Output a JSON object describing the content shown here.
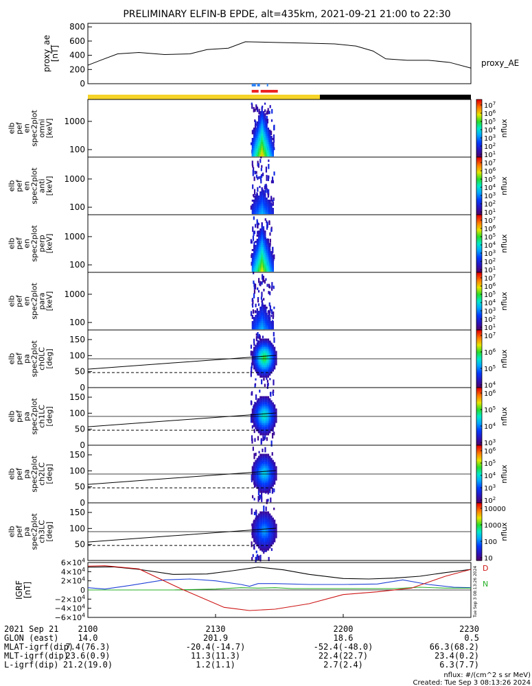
{
  "title": "PRELIMINARY ELFIN-B EPDE, alt=435km, 2021-09-21 21:00 to 22:30",
  "colors": {
    "ae_line": "#000000",
    "bar_sunlit": "#F5D327",
    "bar_shadow": "#000000",
    "marker_blue": "#2E82F5",
    "marker_red": "#EE2222",
    "bx": "#000000",
    "by": "#1D3FD6",
    "bz": "#23B023",
    "bmag": "#CC1111"
  },
  "proxy_ae": {
    "ylabel": "proxy_ae [nT]",
    "legend": "proxy_AE",
    "yticks": [
      "800",
      "600",
      "400",
      "200",
      "0"
    ],
    "ylim": [
      0,
      850
    ]
  },
  "time_axis": {
    "range_min": [
      0,
      90
    ],
    "ticks": [
      {
        "t": 0,
        "label": "2100"
      },
      {
        "t": 30,
        "label": "2130"
      },
      {
        "t": 60,
        "label": "2200"
      },
      {
        "t": 90,
        "label": "2230"
      }
    ]
  },
  "spectrogram_panels": [
    {
      "ylabel": [
        "elb",
        "pef",
        "en",
        "spec2plot",
        "omni",
        "[keV]"
      ],
      "yticks": [
        "1000",
        "100"
      ],
      "scale_ticks": [
        "10^7",
        "10^6",
        "10^5",
        "10^4",
        "10^3",
        "10^2",
        "10^1"
      ],
      "zlabel": "nflux"
    },
    {
      "ylabel": [
        "elb",
        "pef",
        "en",
        "spec2plot",
        "anti",
        "[keV]"
      ],
      "yticks": [
        "1000",
        "100"
      ],
      "scale_ticks": [
        "10^7",
        "10^6",
        "10^5",
        "10^4",
        "10^3",
        "10^2",
        "10^1"
      ],
      "zlabel": "nflux"
    },
    {
      "ylabel": [
        "elb",
        "pef",
        "en",
        "spec2plot",
        "perp",
        "[keV]"
      ],
      "yticks": [
        "1000",
        "100"
      ],
      "scale_ticks": [
        "10^7",
        "10^6",
        "10^5",
        "10^4",
        "10^3",
        "10^2",
        "10^1"
      ],
      "zlabel": "nflux"
    },
    {
      "ylabel": [
        "elb",
        "pef",
        "en",
        "spec2plot",
        "para",
        "[keV]"
      ],
      "yticks": [
        "1000",
        "100"
      ],
      "scale_ticks": [
        "10^7",
        "10^6",
        "10^5",
        "10^4",
        "10^3",
        "10^2",
        "10^1"
      ],
      "zlabel": "nflux"
    }
  ],
  "pitch_panels": [
    {
      "ylabel": [
        "elb",
        "pef",
        "pa",
        "spec2plot",
        "ch0LC",
        "[deg]"
      ],
      "yticks": [
        "150",
        "100",
        "50",
        "0"
      ],
      "scale_ticks": [
        "10^7",
        "10^6",
        "10^5",
        "10^4"
      ],
      "zlabel": "nflux"
    },
    {
      "ylabel": [
        "elb",
        "pef",
        "pa",
        "spec2plot",
        "ch1LC",
        "[deg]"
      ],
      "yticks": [
        "150",
        "100",
        "50",
        "0"
      ],
      "scale_ticks": [
        "10^6",
        "10^5",
        "10^4",
        "10^3"
      ],
      "zlabel": "nflux"
    },
    {
      "ylabel": [
        "elb",
        "pef",
        "pa",
        "spec2plot",
        "ch2LC",
        "[deg]"
      ],
      "yticks": [
        "150",
        "100",
        "50",
        "0"
      ],
      "scale_ticks": [
        "10^6",
        "10^5",
        "10^4",
        "10^3",
        "10^2"
      ],
      "zlabel": "nflux"
    },
    {
      "ylabel": [
        "elb",
        "pef",
        "pa",
        "spec2plot",
        "ch3LC",
        "[deg]"
      ],
      "yticks": [
        "150",
        "100",
        "50"
      ],
      "scale_ticks": [
        "10000",
        "1000",
        "100",
        "10"
      ],
      "zlabel": "nflux"
    }
  ],
  "igrf": {
    "ylabel": "IGRF [nT]",
    "yticks": [
      "6×10^4",
      "4×10^4",
      "2×10^4",
      "0",
      "−2×10^4",
      "−4×10^4",
      "−6×10^4"
    ],
    "ylim": [
      -60000,
      60000
    ],
    "legend": [
      "D",
      "N"
    ]
  },
  "chart_data": {
    "type": "line",
    "title": "PRELIMINARY ELFIN-B EPDE, alt=435km, 2021-09-21 21:00 to 22:30",
    "x_unit": "minutes after 2021-09-21 21:00",
    "series": [
      {
        "name": "proxy_AE",
        "x": [
          0,
          3,
          7,
          12,
          18,
          24,
          28,
          33,
          37,
          45,
          52,
          58,
          63,
          67,
          70,
          75,
          80,
          85,
          90
        ],
        "values": [
          260,
          330,
          420,
          440,
          410,
          420,
          480,
          500,
          590,
          580,
          570,
          560,
          530,
          460,
          350,
          330,
          330,
          300,
          220
        ]
      }
    ],
    "igrf_series": [
      {
        "x": [
          0,
          6,
          12,
          20,
          28,
          34,
          40,
          46,
          52,
          60,
          66,
          72,
          78,
          84,
          90
        ],
        "values": [
          50000,
          50500,
          45000,
          34000,
          35000,
          42000,
          50000,
          44000,
          34000,
          25000,
          24000,
          26000,
          30000,
          38000,
          45000
        ]
      },
      {
        "x": [
          0,
          4,
          10,
          18,
          24,
          30,
          36,
          38,
          40,
          44,
          52,
          60,
          68,
          74,
          80,
          86,
          90
        ],
        "values": [
          5000,
          2000,
          10000,
          22000,
          24000,
          20000,
          12000,
          8000,
          14000,
          14000,
          12000,
          12000,
          13000,
          22000,
          12000,
          6000,
          5000
        ]
      },
      {
        "x": [
          0,
          10,
          20,
          30,
          36,
          40,
          44,
          48,
          56,
          64,
          72,
          78,
          84,
          90
        ],
        "values": [
          0,
          0,
          0,
          2000,
          5000,
          4000,
          5000,
          3000,
          3000,
          3000,
          3000,
          6000,
          4000,
          4000
        ]
      },
      {
        "x": [
          0,
          4,
          12,
          22,
          32,
          38,
          44,
          52,
          60,
          68,
          76,
          84,
          90
        ],
        "values": [
          52000,
          53000,
          46000,
          2000,
          -38000,
          -45000,
          -42000,
          -30000,
          -10000,
          -4000,
          4000,
          30000,
          45000
        ]
      }
    ],
    "event_window_minutes": [
      38.5,
      43.3
    ]
  },
  "footer": {
    "rows": [
      {
        "label": "2021 Sep 21",
        "values": [
          "2100",
          "2130",
          "2200",
          "2230"
        ]
      },
      {
        "label": "GLON (east)",
        "values": [
          "14.0",
          "201.9",
          "18.6",
          "0.5"
        ]
      },
      {
        "label": "MLAT-igrf(dip)",
        "values": [
          "7.4(76.3)",
          "-20.4(-14.7)",
          "-52.4(-48.0)",
          "66.3(68.2)"
        ]
      },
      {
        "label": "MLT-igrf(dip)",
        "values": [
          "23.6(0.9)",
          "11.3(11.3)",
          "22.4(22.7)",
          "23.4(0.2)"
        ]
      },
      {
        "label": "L-igrf(dip)",
        "values": [
          "21.2(19.0)",
          "1.2(1.1)",
          "2.7(2.4)",
          "6.3(7.7)"
        ]
      }
    ],
    "units": "nflux: #/(cm^2 s sr MeV)",
    "created": "Created: Tue Sep  3 08:13:26 2024",
    "side_stamp": "Tue Sep  3 08:13:26 2024"
  }
}
